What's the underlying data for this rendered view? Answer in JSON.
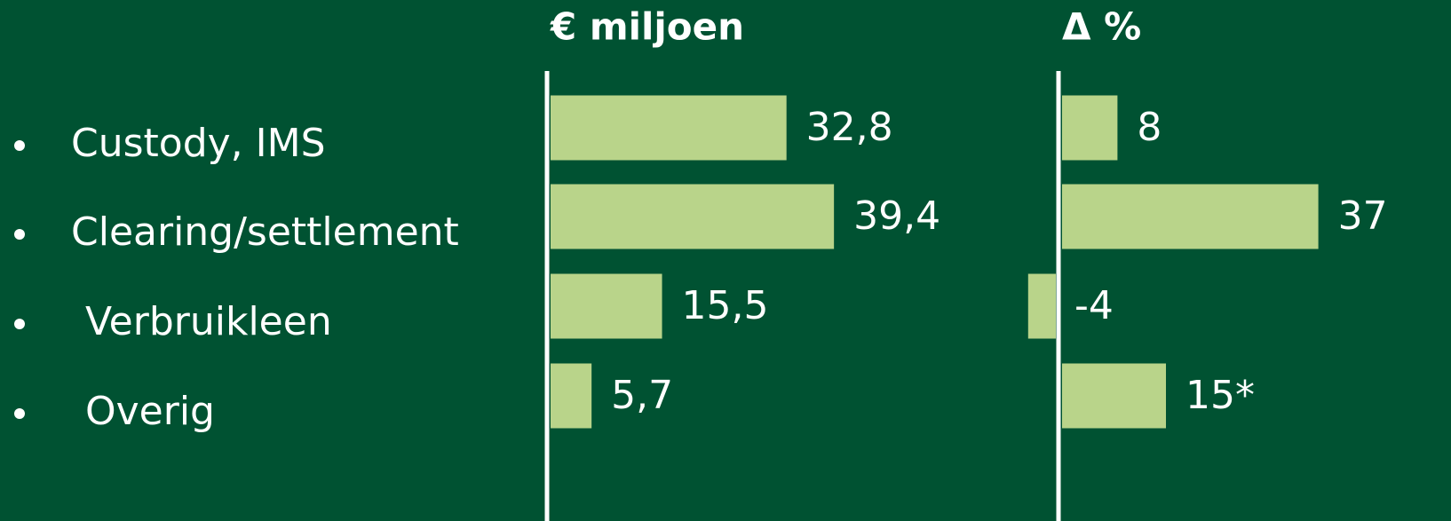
{
  "chart_data": [
    {
      "type": "bar",
      "orientation": "horizontal",
      "title": "€ miljoen",
      "categories": [
        "Custody, IMS",
        "Clearing/settlement",
        "Verbruikleen",
        "Overig"
      ],
      "values": [
        32.8,
        39.4,
        15.5,
        5.7
      ],
      "value_labels": [
        "32,8",
        "39,4",
        "15,5",
        "5,7"
      ],
      "color": "#b9d48a"
    },
    {
      "type": "bar",
      "orientation": "horizontal",
      "title": "Δ %",
      "values": [
        8,
        37,
        -4,
        15
      ],
      "value_labels": [
        "8",
        "37",
        "-4",
        "15*"
      ],
      "color": "#b9d48a"
    }
  ]
}
